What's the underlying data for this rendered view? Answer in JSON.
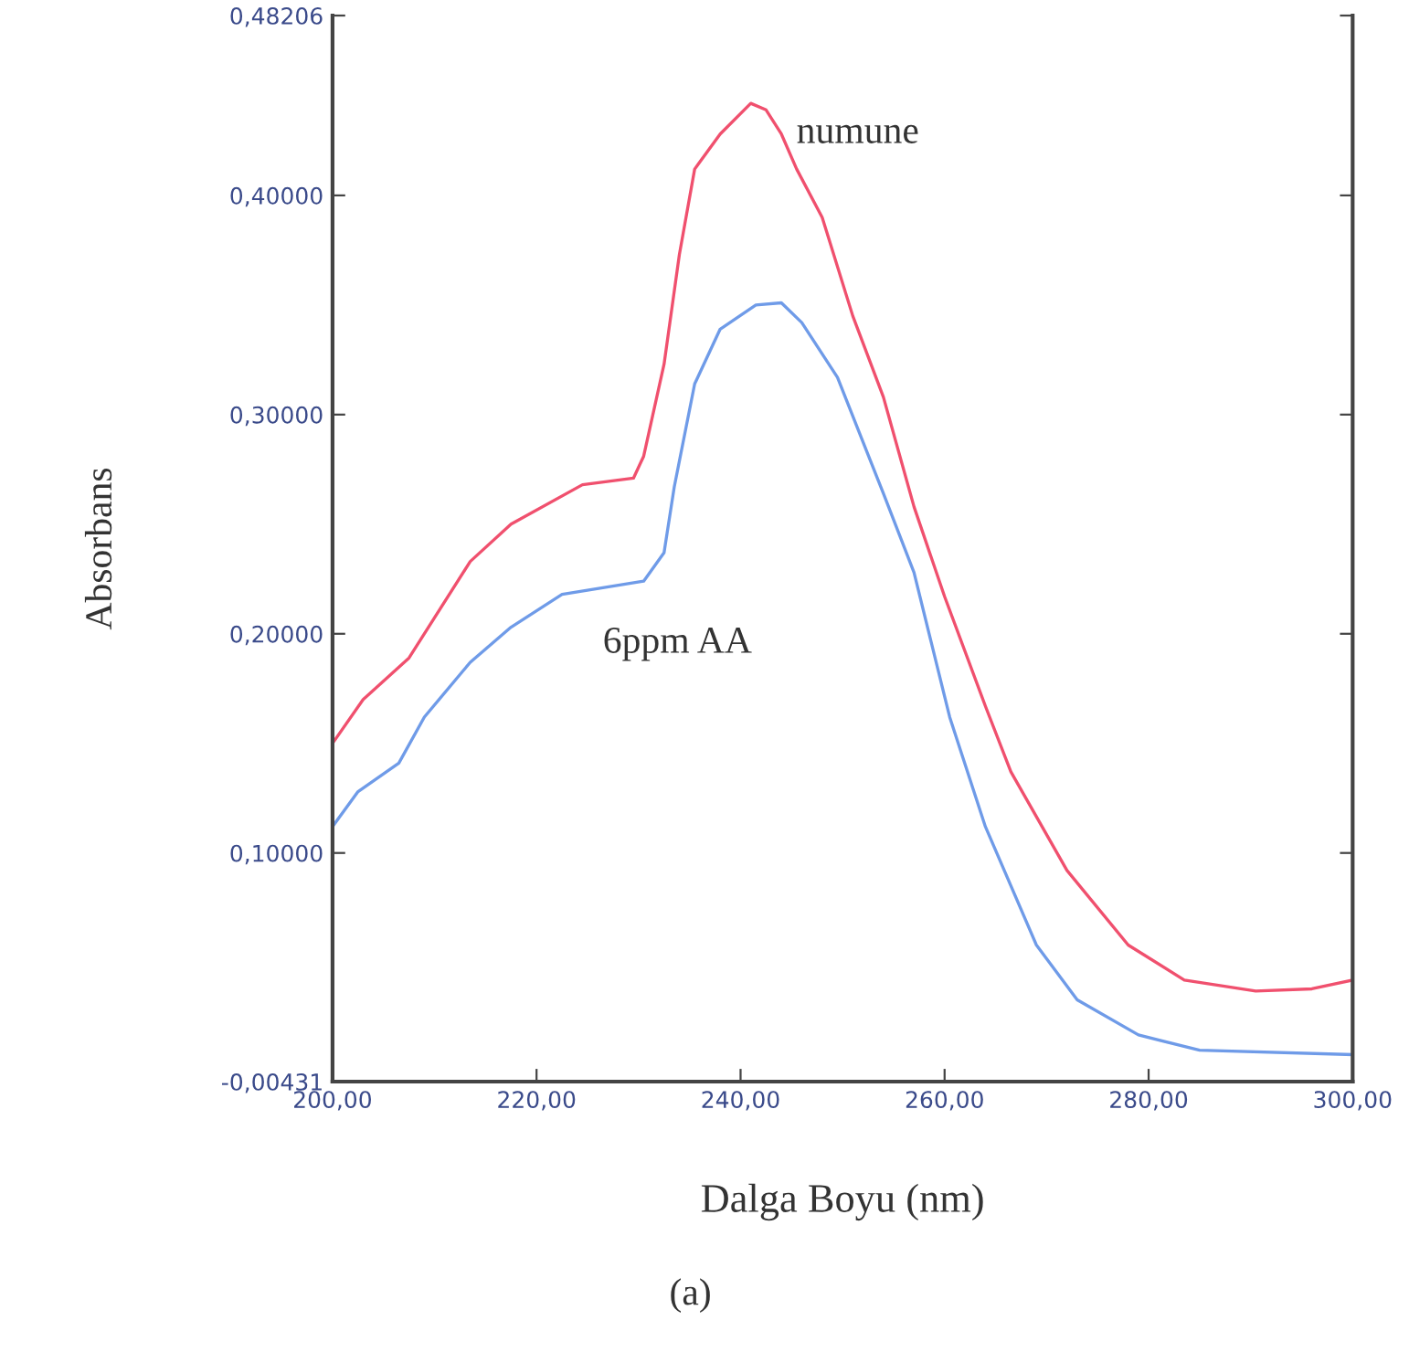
{
  "chart_data": {
    "type": "line",
    "xlabel": "Dalga Boyu (nm)",
    "ylabel": "Absorbans",
    "xlim": [
      200,
      300
    ],
    "ylim": [
      -0.00431,
      0.48206
    ],
    "xticks": [
      {
        "value": 200,
        "label": "200,00"
      },
      {
        "value": 220,
        "label": "220,00"
      },
      {
        "value": 240,
        "label": "240,00"
      },
      {
        "value": 260,
        "label": "260,00"
      },
      {
        "value": 280,
        "label": "280,00"
      },
      {
        "value": 300,
        "label": "300,00"
      }
    ],
    "yticks": [
      {
        "value": -0.00431,
        "label": "-0,00431"
      },
      {
        "value": 0.1,
        "label": "0,10000"
      },
      {
        "value": 0.2,
        "label": "0,20000"
      },
      {
        "value": 0.3,
        "label": "0,30000"
      },
      {
        "value": 0.4,
        "label": "0,40000"
      },
      {
        "value": 0.48206,
        "label": "0,48206"
      }
    ],
    "grid": false,
    "marker": "none",
    "line_style": "solid",
    "series": [
      {
        "name": "numune",
        "color": "#f0506e",
        "x": [
          200,
          203,
          207.5,
          213.5,
          217.5,
          224.5,
          229.5,
          230.5,
          232.5,
          234,
          235.5,
          238,
          241,
          242.5,
          244,
          245.5,
          248,
          251,
          254,
          257,
          260,
          264,
          266.5,
          272,
          278,
          283.5,
          290.5,
          296,
          300
        ],
        "values": [
          0.15,
          0.17,
          0.189,
          0.233,
          0.25,
          0.268,
          0.271,
          0.281,
          0.323,
          0.373,
          0.412,
          0.428,
          0.442,
          0.439,
          0.428,
          0.412,
          0.39,
          0.345,
          0.308,
          0.258,
          0.217,
          0.167,
          0.137,
          0.092,
          0.058,
          0.042,
          0.037,
          0.038,
          0.042
        ]
      },
      {
        "name": "6ppm AA",
        "color": "#6f9be8",
        "x": [
          200,
          202.5,
          206.5,
          209,
          213.5,
          217.5,
          222.5,
          226.5,
          230.5,
          232.5,
          233.5,
          235.5,
          238,
          241.5,
          244,
          246,
          249.5,
          254,
          257,
          260.5,
          264,
          269,
          273,
          279,
          285,
          300
        ],
        "values": [
          0.112,
          0.128,
          0.141,
          0.162,
          0.187,
          0.203,
          0.218,
          0.221,
          0.224,
          0.237,
          0.267,
          0.314,
          0.339,
          0.35,
          0.351,
          0.342,
          0.317,
          0.264,
          0.228,
          0.162,
          0.112,
          0.058,
          0.033,
          0.017,
          0.01,
          0.008
        ]
      }
    ],
    "annotations": [
      "(a)"
    ]
  }
}
